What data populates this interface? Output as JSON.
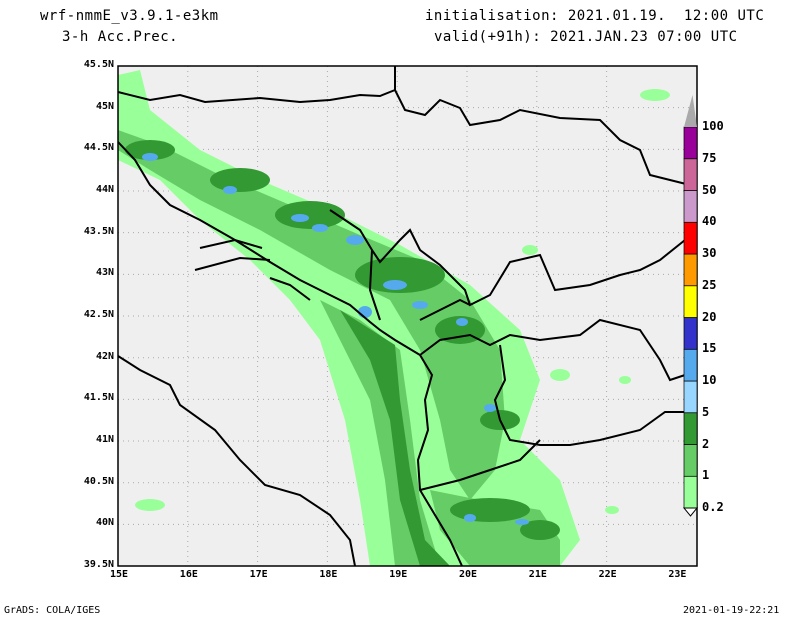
{
  "header": {
    "model": "wrf-nmmE_v3.9.1-e3km",
    "field": "3-h Acc.Prec.",
    "init": "initialisation: 2021.01.19.  12:00 UTC",
    "valid": "valid(+91h): 2021.JAN.23 07:00 UTC"
  },
  "footer": {
    "left": "GrADS: COLA/IGES",
    "right": "2021-01-19-22:21"
  },
  "axes": {
    "lat_labels": [
      "45.5N",
      "45N",
      "44.5N",
      "44N",
      "43.5N",
      "43N",
      "42.5N",
      "42N",
      "41.5N",
      "41N",
      "40.5N",
      "40N",
      "39.5N"
    ],
    "lon_labels": [
      "15E",
      "16E",
      "17E",
      "18E",
      "19E",
      "20E",
      "21E",
      "22E",
      "23E"
    ]
  },
  "colorbar": {
    "levels": [
      {
        "label": "0.2",
        "color": "#99ff99"
      },
      {
        "label": "1",
        "color": "#66cc66"
      },
      {
        "label": "2",
        "color": "#339933"
      },
      {
        "label": "5",
        "color": "#99d6ff"
      },
      {
        "label": "10",
        "color": "#55aaee"
      },
      {
        "label": "15",
        "color": "#3333cc"
      },
      {
        "label": "20",
        "color": "#ffff00"
      },
      {
        "label": "25",
        "color": "#ff9900"
      },
      {
        "label": "30",
        "color": "#ff0000"
      },
      {
        "label": "40",
        "color": "#cc99cc"
      },
      {
        "label": "50",
        "color": "#cc6699"
      },
      {
        "label": "75",
        "color": "#990099"
      },
      {
        "label": "100",
        "color": "#aaaaaa"
      }
    ]
  }
}
